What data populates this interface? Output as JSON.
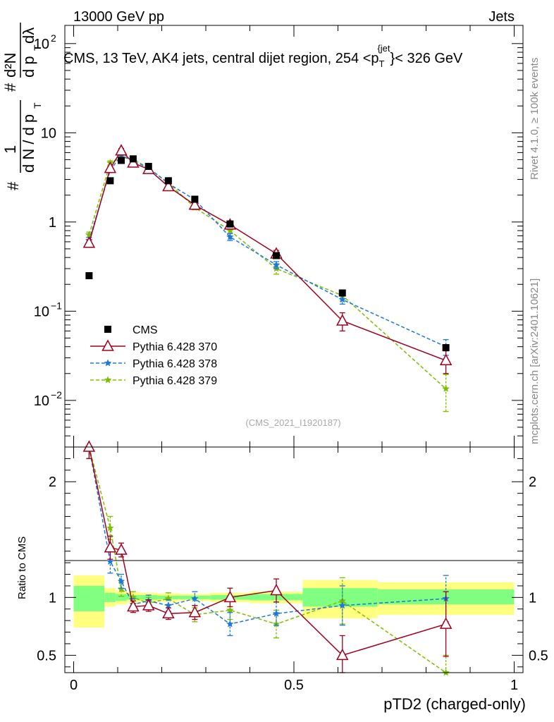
{
  "header": {
    "left": "13000 GeV pp",
    "right": "Jets"
  },
  "side_labels": {
    "rivet": "Rivet 4.1.0, ≥ 100k events",
    "mcplots": "mcplots.cern.ch [arXiv:2401.10621]"
  },
  "chart_data": [
    {
      "type": "line",
      "panel": "main",
      "title": "CMS, 13 TeV, AK4 jets, central dijet region, 254 < p_T^{jet} < 326 GeV",
      "title_text": {
        "before": "CMS, 13 TeV, AK4 jets, central dijet region, 254 <p",
        "sub": "T",
        "sup": "{jet",
        "after": "}< 326 GeV"
      },
      "ylabel": "1/(dN/dp_T) d²N/(dp_T dλ)",
      "ylabel_parts": {
        "hash1": "#",
        "one": "1",
        "denom": "d N / d p",
        "sub_T1": "T",
        "hash2": "#",
        "numer": "d²N",
        "denom2": "d p",
        "sub_T2": "T",
        "dl": "dλ"
      },
      "yscale": "log",
      "ylim": [
        0.003,
        160
      ],
      "xlim": [
        -0.02,
        1.02
      ],
      "y_ticks": [
        {
          "value": 0.01,
          "label": "10",
          "exp": "−2"
        },
        {
          "value": 0.1,
          "label": "10",
          "exp": "−1"
        },
        {
          "value": 1,
          "label": "1",
          "exp": ""
        },
        {
          "value": 10,
          "label": "10",
          "exp": ""
        },
        {
          "value": 100,
          "label": "10",
          "exp": "2"
        }
      ],
      "watermark": "(CMS_2021_I1920187)",
      "legend_position": "lower-left",
      "series": [
        {
          "name": "CMS",
          "color": "#000000",
          "marker": "square",
          "line": "none",
          "x": [
            0.035,
            0.083,
            0.108,
            0.135,
            0.17,
            0.215,
            0.275,
            0.355,
            0.46,
            0.61,
            0.845
          ],
          "values": [
            0.25,
            2.9,
            4.9,
            5.1,
            4.2,
            2.9,
            1.8,
            0.95,
            0.42,
            0.16,
            0.039
          ],
          "err": [
            0,
            0.1,
            0.15,
            0.15,
            0.12,
            0.08,
            0.05,
            0.03,
            0.015,
            0.01,
            0.003
          ]
        },
        {
          "name": "Pythia 6.428 370",
          "color": "#a0001e",
          "marker": "triangle",
          "line": "solid",
          "x": [
            0.035,
            0.083,
            0.108,
            0.135,
            0.17,
            0.215,
            0.275,
            0.355,
            0.46,
            0.61,
            0.845
          ],
          "values": [
            0.58,
            4.0,
            6.3,
            4.6,
            3.9,
            2.5,
            1.55,
            0.93,
            0.44,
            0.078,
            0.028
          ],
          "err": [
            0.05,
            0.2,
            0.35,
            0.25,
            0.2,
            0.12,
            0.08,
            0.06,
            0.04,
            0.018,
            0.008
          ]
        },
        {
          "name": "Pythia 6.428 378",
          "color": "#1e78dc",
          "marker": "star",
          "line": "dashed",
          "x": [
            0.035,
            0.083,
            0.108,
            0.135,
            0.17,
            0.215,
            0.275,
            0.355,
            0.46,
            0.61,
            0.845
          ],
          "values": [
            0.62,
            3.8,
            5.6,
            4.8,
            4.05,
            2.7,
            1.78,
            0.68,
            0.33,
            0.135,
            0.04
          ],
          "err": [
            0.05,
            0.2,
            0.3,
            0.25,
            0.2,
            0.12,
            0.08,
            0.06,
            0.03,
            0.015,
            0.008
          ]
        },
        {
          "name": "Pythia 6.428 379",
          "color": "#7bbf00",
          "marker": "star",
          "line": "dashed",
          "x": [
            0.035,
            0.083,
            0.108,
            0.135,
            0.17,
            0.215,
            0.275,
            0.355,
            0.46,
            0.61,
            0.845
          ],
          "values": [
            0.72,
            4.6,
            5.3,
            5.1,
            4.0,
            2.75,
            1.45,
            0.8,
            0.3,
            0.15,
            0.0135
          ],
          "err": [
            0.05,
            0.25,
            0.3,
            0.25,
            0.2,
            0.12,
            0.08,
            0.06,
            0.04,
            0.02,
            0.006
          ]
        }
      ]
    },
    {
      "type": "line",
      "panel": "ratio",
      "ylabel": "Ratio to CMS",
      "xlabel": "pTD2 (charged-only)",
      "ylim": [
        0.35,
        2.3
      ],
      "xlim": [
        -0.02,
        1.02
      ],
      "x_ticks": [
        {
          "value": 0,
          "label": "0"
        },
        {
          "value": 0.5,
          "label": "0.5"
        },
        {
          "value": 1,
          "label": "1"
        }
      ],
      "y_ticks": [
        {
          "value": 0.5,
          "label": "0.5"
        },
        {
          "value": 1,
          "label": "1"
        },
        {
          "value": 2,
          "label": "2"
        }
      ],
      "bands": {
        "bins": [
          [
            0.0,
            0.07
          ],
          [
            0.07,
            0.095
          ],
          [
            0.095,
            0.12
          ],
          [
            0.12,
            0.15
          ],
          [
            0.15,
            0.19
          ],
          [
            0.19,
            0.24
          ],
          [
            0.24,
            0.31
          ],
          [
            0.31,
            0.4
          ],
          [
            0.4,
            0.52
          ],
          [
            0.52,
            0.69
          ],
          [
            0.69,
            1.0
          ]
        ],
        "stat_lo": [
          0.88,
          0.96,
          0.97,
          0.98,
          0.98,
          0.985,
          0.985,
          0.98,
          0.975,
          0.92,
          0.94
        ],
        "stat_hi": [
          1.1,
          1.04,
          1.03,
          1.02,
          1.02,
          1.015,
          1.015,
          1.02,
          1.03,
          1.08,
          1.07
        ],
        "tot_lo": [
          0.74,
          0.92,
          0.94,
          0.955,
          0.96,
          0.965,
          0.97,
          0.96,
          0.95,
          0.82,
          0.85
        ],
        "tot_hi": [
          1.19,
          1.08,
          1.06,
          1.045,
          1.04,
          1.035,
          1.03,
          1.04,
          1.05,
          1.15,
          1.13
        ],
        "stat_color": "#80ff80",
        "tot_color": "#ffff80"
      },
      "series": [
        {
          "name": "Pythia 6.428 370",
          "color": "#a0001e",
          "marker": "triangle",
          "line": "solid",
          "x": [
            0.035,
            0.083,
            0.108,
            0.135,
            0.17,
            0.215,
            0.275,
            0.355,
            0.46,
            0.61,
            0.845
          ],
          "values": [
            2.3,
            1.43,
            1.41,
            0.92,
            0.93,
            0.86,
            0.87,
            1.0,
            1.06,
            0.5,
            0.77
          ],
          "err": [
            0.1,
            0.1,
            0.06,
            0.05,
            0.05,
            0.05,
            0.06,
            0.08,
            0.1,
            0.17,
            0.28
          ]
        },
        {
          "name": "Pythia 6.428 378",
          "color": "#1e78dc",
          "marker": "star",
          "line": "dashed",
          "x": [
            0.035,
            0.083,
            0.108,
            0.135,
            0.17,
            0.215,
            0.275,
            0.355,
            0.46,
            0.61,
            0.845
          ],
          "values": [
            2.3,
            1.31,
            1.14,
            0.94,
            0.97,
            0.93,
            0.99,
            0.77,
            0.86,
            0.93,
            0.99
          ],
          "err": [
            0.1,
            0.1,
            0.06,
            0.05,
            0.05,
            0.05,
            0.06,
            0.1,
            0.1,
            0.17,
            0.2
          ]
        },
        {
          "name": "Pythia 6.428 379",
          "color": "#7bbf00",
          "marker": "star",
          "line": "dashed",
          "x": [
            0.035,
            0.083,
            0.108,
            0.135,
            0.17,
            0.215,
            0.275,
            0.355,
            0.46,
            0.61,
            0.845
          ],
          "values": [
            2.3,
            1.6,
            1.07,
            1.0,
            0.95,
            0.99,
            0.85,
            0.89,
            0.77,
            0.97,
            0.35
          ],
          "err": [
            0.1,
            0.1,
            0.06,
            0.05,
            0.05,
            0.05,
            0.06,
            0.08,
            0.12,
            0.2,
            0.15
          ]
        }
      ]
    }
  ]
}
